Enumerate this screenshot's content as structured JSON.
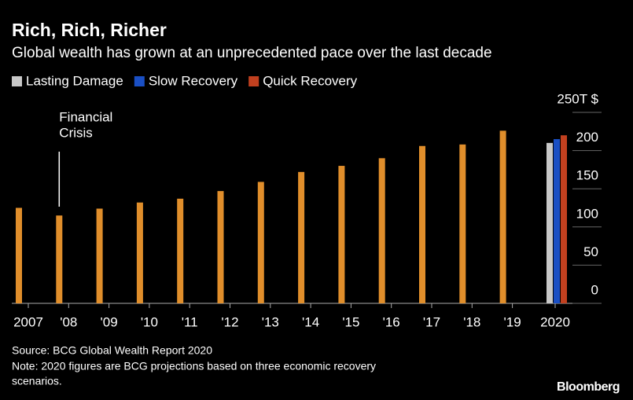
{
  "chart_data": {
    "type": "bar",
    "title": "Rich, Rich, Richer",
    "subtitle": "Global wealth has grown at an unprecedented pace over the last decade",
    "categories": [
      "2007",
      "'08",
      "'09",
      "'10",
      "'11",
      "'12",
      "'13",
      "'14",
      "'15",
      "'16",
      "'17",
      "'18",
      "'19",
      "2020"
    ],
    "values": [
      125,
      115,
      124,
      132,
      137,
      147,
      159,
      172,
      180,
      190,
      206,
      208,
      226,
      null
    ],
    "color": "#e08e2b",
    "series": [
      {
        "name": "Lasting Damage",
        "color": "#c8c8c8",
        "values": [
          null,
          null,
          null,
          null,
          null,
          null,
          null,
          null,
          null,
          null,
          null,
          null,
          null,
          210
        ]
      },
      {
        "name": "Slow Recovery",
        "color": "#1a4fc4",
        "values": [
          null,
          null,
          null,
          null,
          null,
          null,
          null,
          null,
          null,
          null,
          null,
          null,
          null,
          215
        ]
      },
      {
        "name": "Quick Recovery",
        "color": "#c1401f",
        "values": [
          null,
          null,
          null,
          null,
          null,
          null,
          null,
          null,
          null,
          null,
          null,
          null,
          null,
          220
        ]
      }
    ],
    "ylim": [
      0,
      250
    ],
    "yticks": [
      0,
      50,
      100,
      150,
      200,
      {
        "value": 250,
        "label": "250T $"
      }
    ],
    "annotation": {
      "lines": [
        "Financial",
        "Crisis"
      ],
      "category": 1
    },
    "source": "Source: BCG Global Wealth Report 2020",
    "note": [
      "Note: 2020 figures are BCG projections based on three economic recovery",
      "scenarios."
    ],
    "brand": "Bloomberg"
  }
}
